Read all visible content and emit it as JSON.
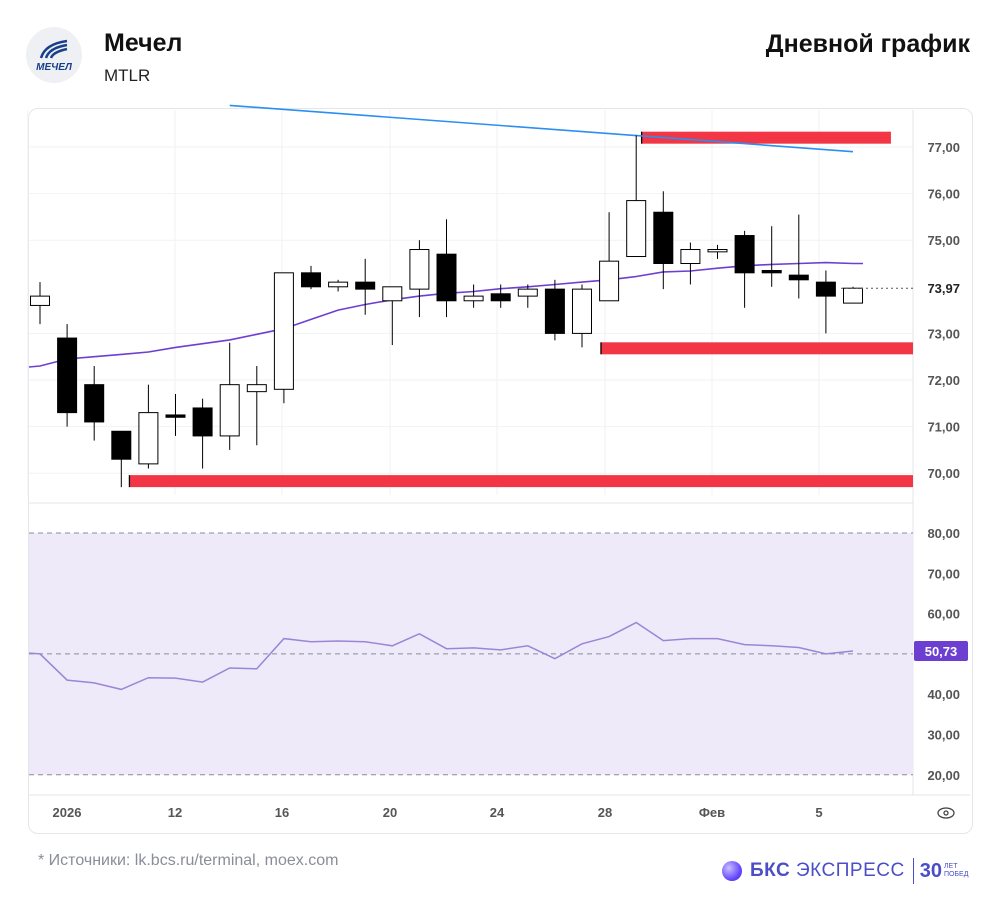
{
  "header": {
    "company": "Мечел",
    "ticker": "MTLR",
    "chart_title": "Дневной график"
  },
  "footer": {
    "source": "* Источники: lk.bcs.ru/terminal, moex.com",
    "brand_bks": "БКС",
    "brand_express": "ЭКСПРЕСС",
    "brand_30": "30",
    "brand_years": "ЛЕТ",
    "brand_wins": "ПОБЕД"
  },
  "logo_text": "МЕЧЕЛ",
  "colors": {
    "level_red": "#f23645",
    "ma_line": "#6c3fd1",
    "trend_line": "#2a8ff0",
    "rsi_line": "#9b86d6",
    "rsi_band": "#efeaf9",
    "last_price_bg": "#7a5be0",
    "rsi_badge_bg": "#6c3fd1"
  },
  "chart_data": [
    {
      "type": "candlestick",
      "y_ticks": [
        "70,00",
        "71,00",
        "72,00",
        "73,00",
        "73,97",
        "75,00",
        "76,00",
        "77,00"
      ],
      "ylim": [
        69.6,
        77.85
      ],
      "last_price": "73,97",
      "x_ticks": [
        "2026",
        "12",
        "16",
        "20",
        "24",
        "28",
        "Фев",
        "5"
      ],
      "candles": [
        {
          "o": 73.6,
          "h": 74.1,
          "l": 73.2,
          "c": 73.8
        },
        {
          "o": 72.9,
          "h": 73.2,
          "l": 71.0,
          "c": 71.3
        },
        {
          "o": 71.9,
          "h": 72.3,
          "l": 70.7,
          "c": 71.1
        },
        {
          "o": 70.9,
          "h": 70.9,
          "l": 69.7,
          "c": 70.3
        },
        {
          "o": 70.2,
          "h": 71.9,
          "l": 70.1,
          "c": 71.3
        },
        {
          "o": 71.25,
          "h": 71.7,
          "l": 70.8,
          "c": 71.2
        },
        {
          "o": 71.4,
          "h": 71.6,
          "l": 70.1,
          "c": 70.8
        },
        {
          "o": 70.8,
          "h": 72.8,
          "l": 70.5,
          "c": 71.9
        },
        {
          "o": 71.75,
          "h": 72.3,
          "l": 70.6,
          "c": 71.9
        },
        {
          "o": 71.8,
          "h": 74.3,
          "l": 71.5,
          "c": 74.3
        },
        {
          "o": 74.3,
          "h": 74.45,
          "l": 73.95,
          "c": 74.0
        },
        {
          "o": 74.0,
          "h": 74.15,
          "l": 73.9,
          "c": 74.1
        },
        {
          "o": 74.1,
          "h": 74.6,
          "l": 73.4,
          "c": 73.95
        },
        {
          "o": 73.7,
          "h": 74.0,
          "l": 72.75,
          "c": 74.0
        },
        {
          "o": 73.95,
          "h": 75.0,
          "l": 73.35,
          "c": 74.8
        },
        {
          "o": 74.7,
          "h": 75.45,
          "l": 73.35,
          "c": 73.7
        },
        {
          "o": 73.7,
          "h": 74.05,
          "l": 73.55,
          "c": 73.8
        },
        {
          "o": 73.85,
          "h": 74.05,
          "l": 73.55,
          "c": 73.7
        },
        {
          "o": 73.8,
          "h": 74.05,
          "l": 73.55,
          "c": 73.95
        },
        {
          "o": 73.95,
          "h": 74.15,
          "l": 72.85,
          "c": 73.0
        },
        {
          "o": 73.0,
          "h": 74.05,
          "l": 72.7,
          "c": 73.95
        },
        {
          "o": 73.7,
          "h": 75.6,
          "l": 73.7,
          "c": 74.55
        },
        {
          "o": 74.65,
          "h": 77.25,
          "l": 74.65,
          "c": 75.85
        },
        {
          "o": 75.6,
          "h": 76.05,
          "l": 73.95,
          "c": 74.5
        },
        {
          "o": 74.5,
          "h": 74.95,
          "l": 74.05,
          "c": 74.8
        },
        {
          "o": 74.75,
          "h": 74.9,
          "l": 74.6,
          "c": 74.8
        },
        {
          "o": 75.1,
          "h": 75.2,
          "l": 73.55,
          "c": 74.3
        },
        {
          "o": 74.35,
          "h": 75.3,
          "l": 74.0,
          "c": 74.3
        },
        {
          "o": 74.25,
          "h": 75.55,
          "l": 73.75,
          "c": 74.15
        },
        {
          "o": 74.1,
          "h": 74.35,
          "l": 73.0,
          "c": 73.8
        },
        {
          "o": 73.65,
          "h": 74.0,
          "l": 73.65,
          "c": 73.97
        }
      ],
      "moving_average": [
        72.3,
        72.45,
        72.5,
        72.55,
        72.6,
        72.7,
        72.78,
        72.86,
        72.98,
        73.1,
        73.3,
        73.5,
        73.62,
        73.72,
        73.8,
        73.86,
        73.9,
        73.96,
        74.0,
        74.05,
        74.1,
        74.15,
        74.22,
        74.32,
        74.34,
        74.4,
        74.45,
        74.48,
        74.5,
        74.52,
        74.5
      ],
      "trendline": [
        [
          7,
          77.85
        ],
        [
          30,
          76.9
        ]
      ],
      "levels": [
        {
          "from": 22.2,
          "to": 31.4,
          "value": 77.2
        },
        {
          "from": 20.7,
          "to": 32.8,
          "value": 72.68
        },
        {
          "from": 3.3,
          "to": 32.8,
          "value": 69.83
        }
      ]
    },
    {
      "type": "line",
      "series": [
        {
          "values": [
            50.0,
            43.5,
            42.8,
            41.2,
            44.1,
            44.0,
            43.0,
            46.5,
            46.3,
            53.8,
            53.0,
            53.2,
            53.0,
            52.0,
            55.0,
            51.3,
            51.5,
            51.0,
            52.0,
            48.8,
            52.5,
            54.3,
            57.8,
            53.3,
            53.8,
            53.8,
            52.3,
            52.0,
            51.6,
            50.0,
            50.73
          ]
        }
      ],
      "y_ticks": [
        "20,00",
        "30,00",
        "40,00",
        "50,00",
        "60,00",
        "70,00",
        "80,00"
      ],
      "ylim": [
        15,
        85
      ],
      "band": [
        20,
        80
      ],
      "last_value": "50,73"
    }
  ]
}
